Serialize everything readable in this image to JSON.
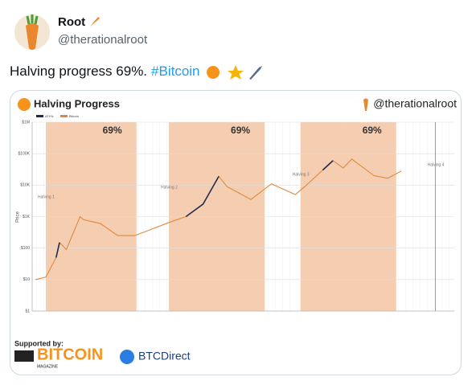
{
  "tweet": {
    "name": "Root",
    "handle": "@therationalroot",
    "text": "Halving progress 69%.",
    "hashtag": "#Bitcoin"
  },
  "card": {
    "supported_by": "Supported by:",
    "sponsor1": "BITCOIN",
    "sponsor1_sub": "MAGAZINE",
    "sponsor2": "BTCDirect"
  },
  "chart_data": {
    "type": "line",
    "title": "Halving Progress",
    "watermark": "@therationalroot",
    "y_label": "Price",
    "log_y": true,
    "x": [
      2012.6,
      2012.9,
      2013.2,
      2013.3,
      2013.5,
      2013.9,
      2014.0,
      2014.5,
      2015.0,
      2015.5,
      2016.0,
      2016.5,
      2017.0,
      2017.5,
      2017.96,
      2018.2,
      2018.9,
      2019.5,
      2020.2,
      2020.5,
      2021.0,
      2021.3,
      2021.6,
      2021.85,
      2022.5,
      2022.9,
      2023.3
    ],
    "series": [
      {
        "name": "Bitcoin",
        "color": "#e0883a",
        "values": [
          10,
          12,
          50,
          150,
          90,
          1000,
          800,
          600,
          250,
          250,
          400,
          650,
          1000,
          2500,
          19000,
          9000,
          3500,
          11000,
          5000,
          9500,
          30000,
          60000,
          35000,
          67000,
          20000,
          16500,
          28000
        ]
      },
      {
        "name": "ATH's",
        "color": "#1f2d4d",
        "values": [
          null,
          null,
          50,
          150,
          null,
          null,
          null,
          null,
          null,
          null,
          null,
          null,
          1000,
          2500,
          19000,
          null,
          null,
          null,
          null,
          null,
          30000,
          60000,
          null,
          null,
          null,
          null,
          null
        ]
      }
    ],
    "xlim": [
      2012.5,
      2024.85
    ],
    "ylim": [
      1,
      1000000
    ],
    "yticks": [
      {
        "value": 1,
        "label": "$1"
      },
      {
        "value": 10,
        "label": "$10"
      },
      {
        "value": 100,
        "label": "$100"
      },
      {
        "value": 1000,
        "label": "$1K"
      },
      {
        "value": 10000,
        "label": "$10K"
      },
      {
        "value": 100000,
        "label": "$100K"
      },
      {
        "value": 1000000,
        "label": "$1M"
      }
    ],
    "shaded": [
      {
        "start": 2012.9,
        "end": 2015.55,
        "label": "69%"
      },
      {
        "start": 2016.5,
        "end": 2019.3,
        "label": "69%"
      },
      {
        "start": 2020.35,
        "end": 2023.15,
        "label": "69%"
      }
    ],
    "halvings": [
      {
        "label": "Halving 1",
        "x": 2012.9
      },
      {
        "label": "Halving 2",
        "x": 2016.5
      },
      {
        "label": "Halving 3",
        "x": 2020.35
      },
      {
        "label": "Halving 4",
        "x": 2024.3
      }
    ]
  }
}
